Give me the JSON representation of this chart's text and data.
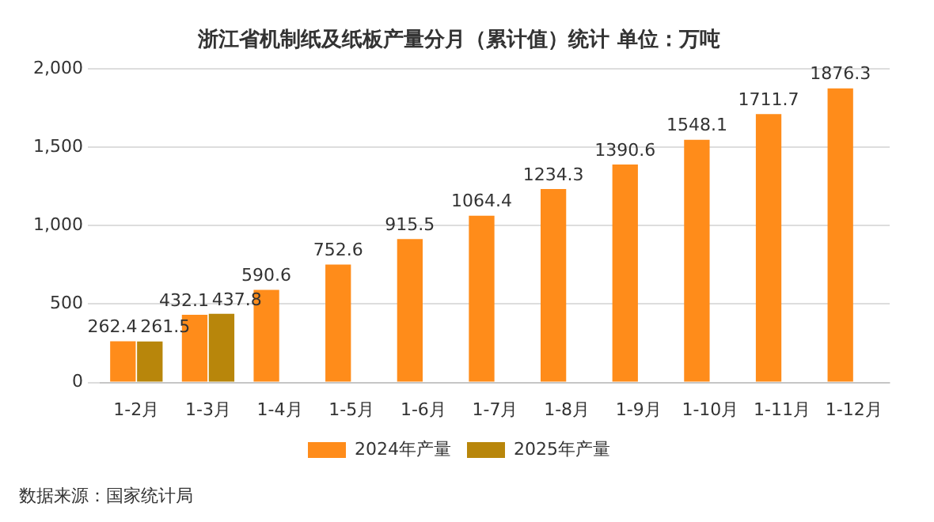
{
  "chart_data": {
    "type": "bar",
    "title": "浙江省机制纸及纸板产量分月（累计值）统计 单位：万吨",
    "categories": [
      "1-2月",
      "1-3月",
      "1-4月",
      "1-5月",
      "1-6月",
      "1-7月",
      "1-8月",
      "1-9月",
      "1-10月",
      "1-11月",
      "1-12月"
    ],
    "series": [
      {
        "name": "2024年产量",
        "color": "#ff8c1a",
        "values": [
          262.4,
          432.1,
          590.6,
          752.6,
          915.5,
          1064.4,
          1234.3,
          1390.6,
          1548.1,
          1711.7,
          1876.3
        ]
      },
      {
        "name": "2025年产量",
        "color": "#b8860b",
        "values": [
          261.5,
          437.8,
          null,
          null,
          null,
          null,
          null,
          null,
          null,
          null,
          null
        ]
      }
    ],
    "ylim": [
      0,
      2000
    ],
    "yticks": [
      0,
      500,
      {
        "value": 1000,
        "label": "1,000"
      },
      {
        "value": 1500,
        "label": "1,500"
      },
      {
        "value": 2000,
        "label": "2,000"
      }
    ],
    "grid": "y",
    "legend": "bottom",
    "data_labels": true,
    "annotations": [
      "数据来源：国家统计局"
    ]
  }
}
